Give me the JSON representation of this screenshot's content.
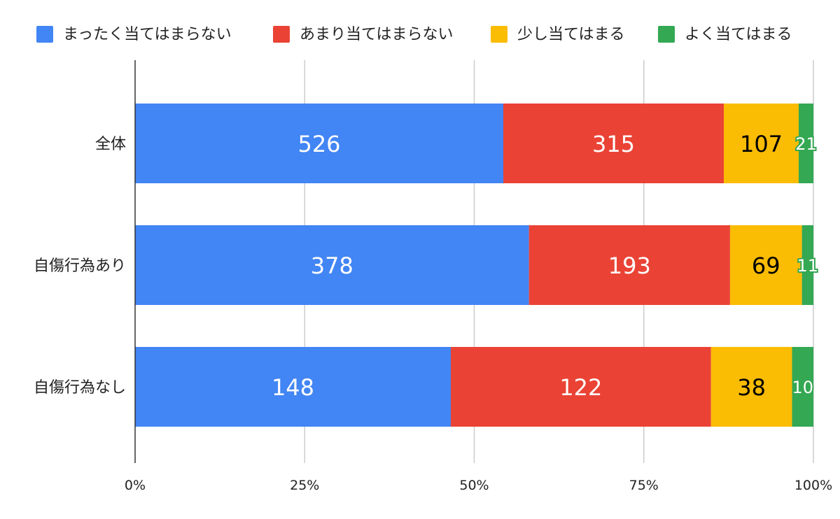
{
  "chart_data": {
    "type": "bar",
    "orientation": "horizontal",
    "stacked": "percent",
    "title": "",
    "xlabel": "",
    "ylabel": "",
    "categories": [
      "全体",
      "自傷行為あり",
      "自傷行為なし"
    ],
    "series": [
      {
        "name": "まったく当てはまらない",
        "color": "#4285F4",
        "label_color": "#ffffff",
        "values": [
          526,
          378,
          148
        ]
      },
      {
        "name": "あまり当てはまらない",
        "color": "#EA4335",
        "label_color": "#ffffff",
        "values": [
          315,
          193,
          122
        ]
      },
      {
        "name": "少し当てはまる",
        "color": "#FBBC04",
        "label_color": "#000000",
        "values": [
          107,
          69,
          38
        ]
      },
      {
        "name": "よく当てはまる",
        "color": "#34A853",
        "label_color": "#ffffff",
        "values": [
          21,
          11,
          10
        ]
      }
    ],
    "x_ticks": [
      "0%",
      "25%",
      "50%",
      "75%",
      "100%"
    ],
    "xlim": [
      0,
      100
    ],
    "grid": true,
    "legend_position": "top"
  }
}
